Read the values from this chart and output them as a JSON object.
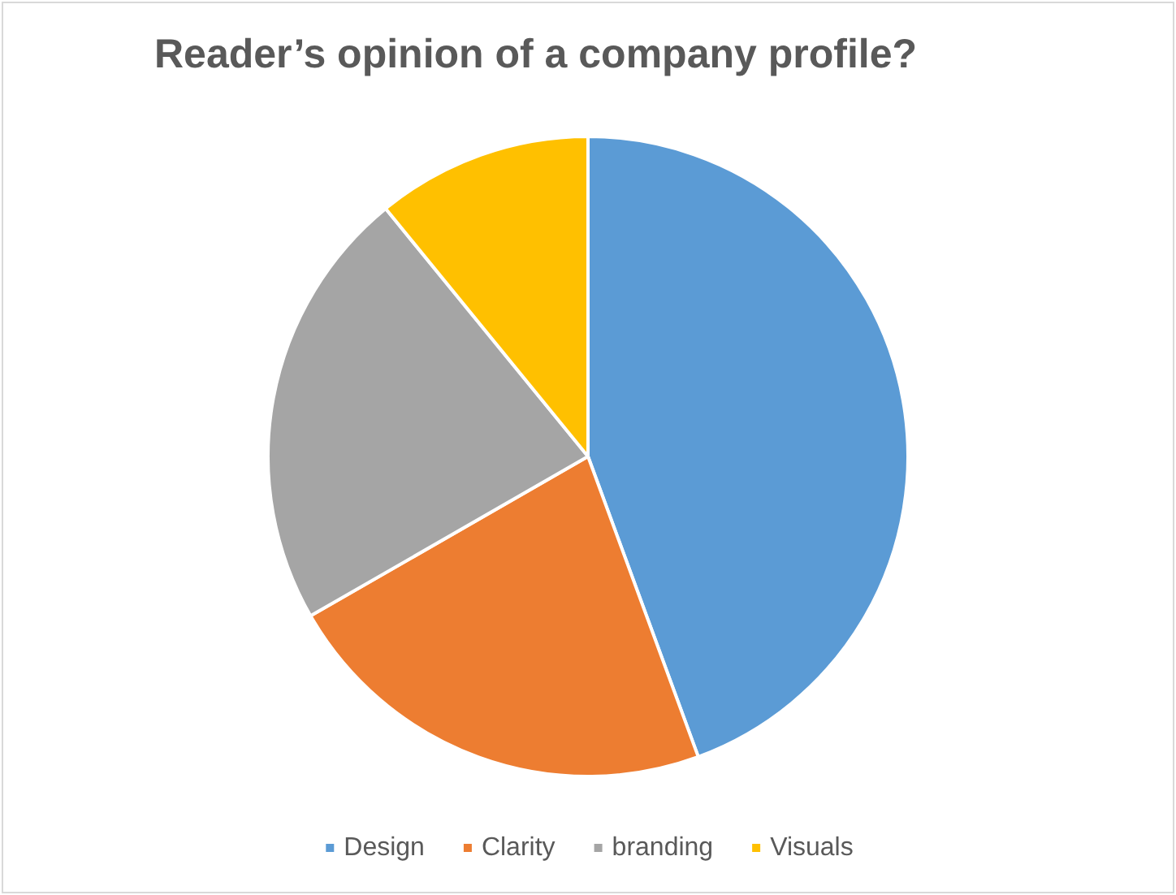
{
  "chart_data": {
    "type": "pie",
    "title": "Reader’s opinion of a company profile?",
    "categories": [
      "Design",
      "Clarity",
      "branding",
      "Visuals"
    ],
    "values": [
      44.4,
      22.3,
      22.4,
      10.9
    ],
    "colors": [
      "#5b9bd5",
      "#ed7d31",
      "#a5a5a5",
      "#ffc000"
    ],
    "legend": "bottom"
  }
}
